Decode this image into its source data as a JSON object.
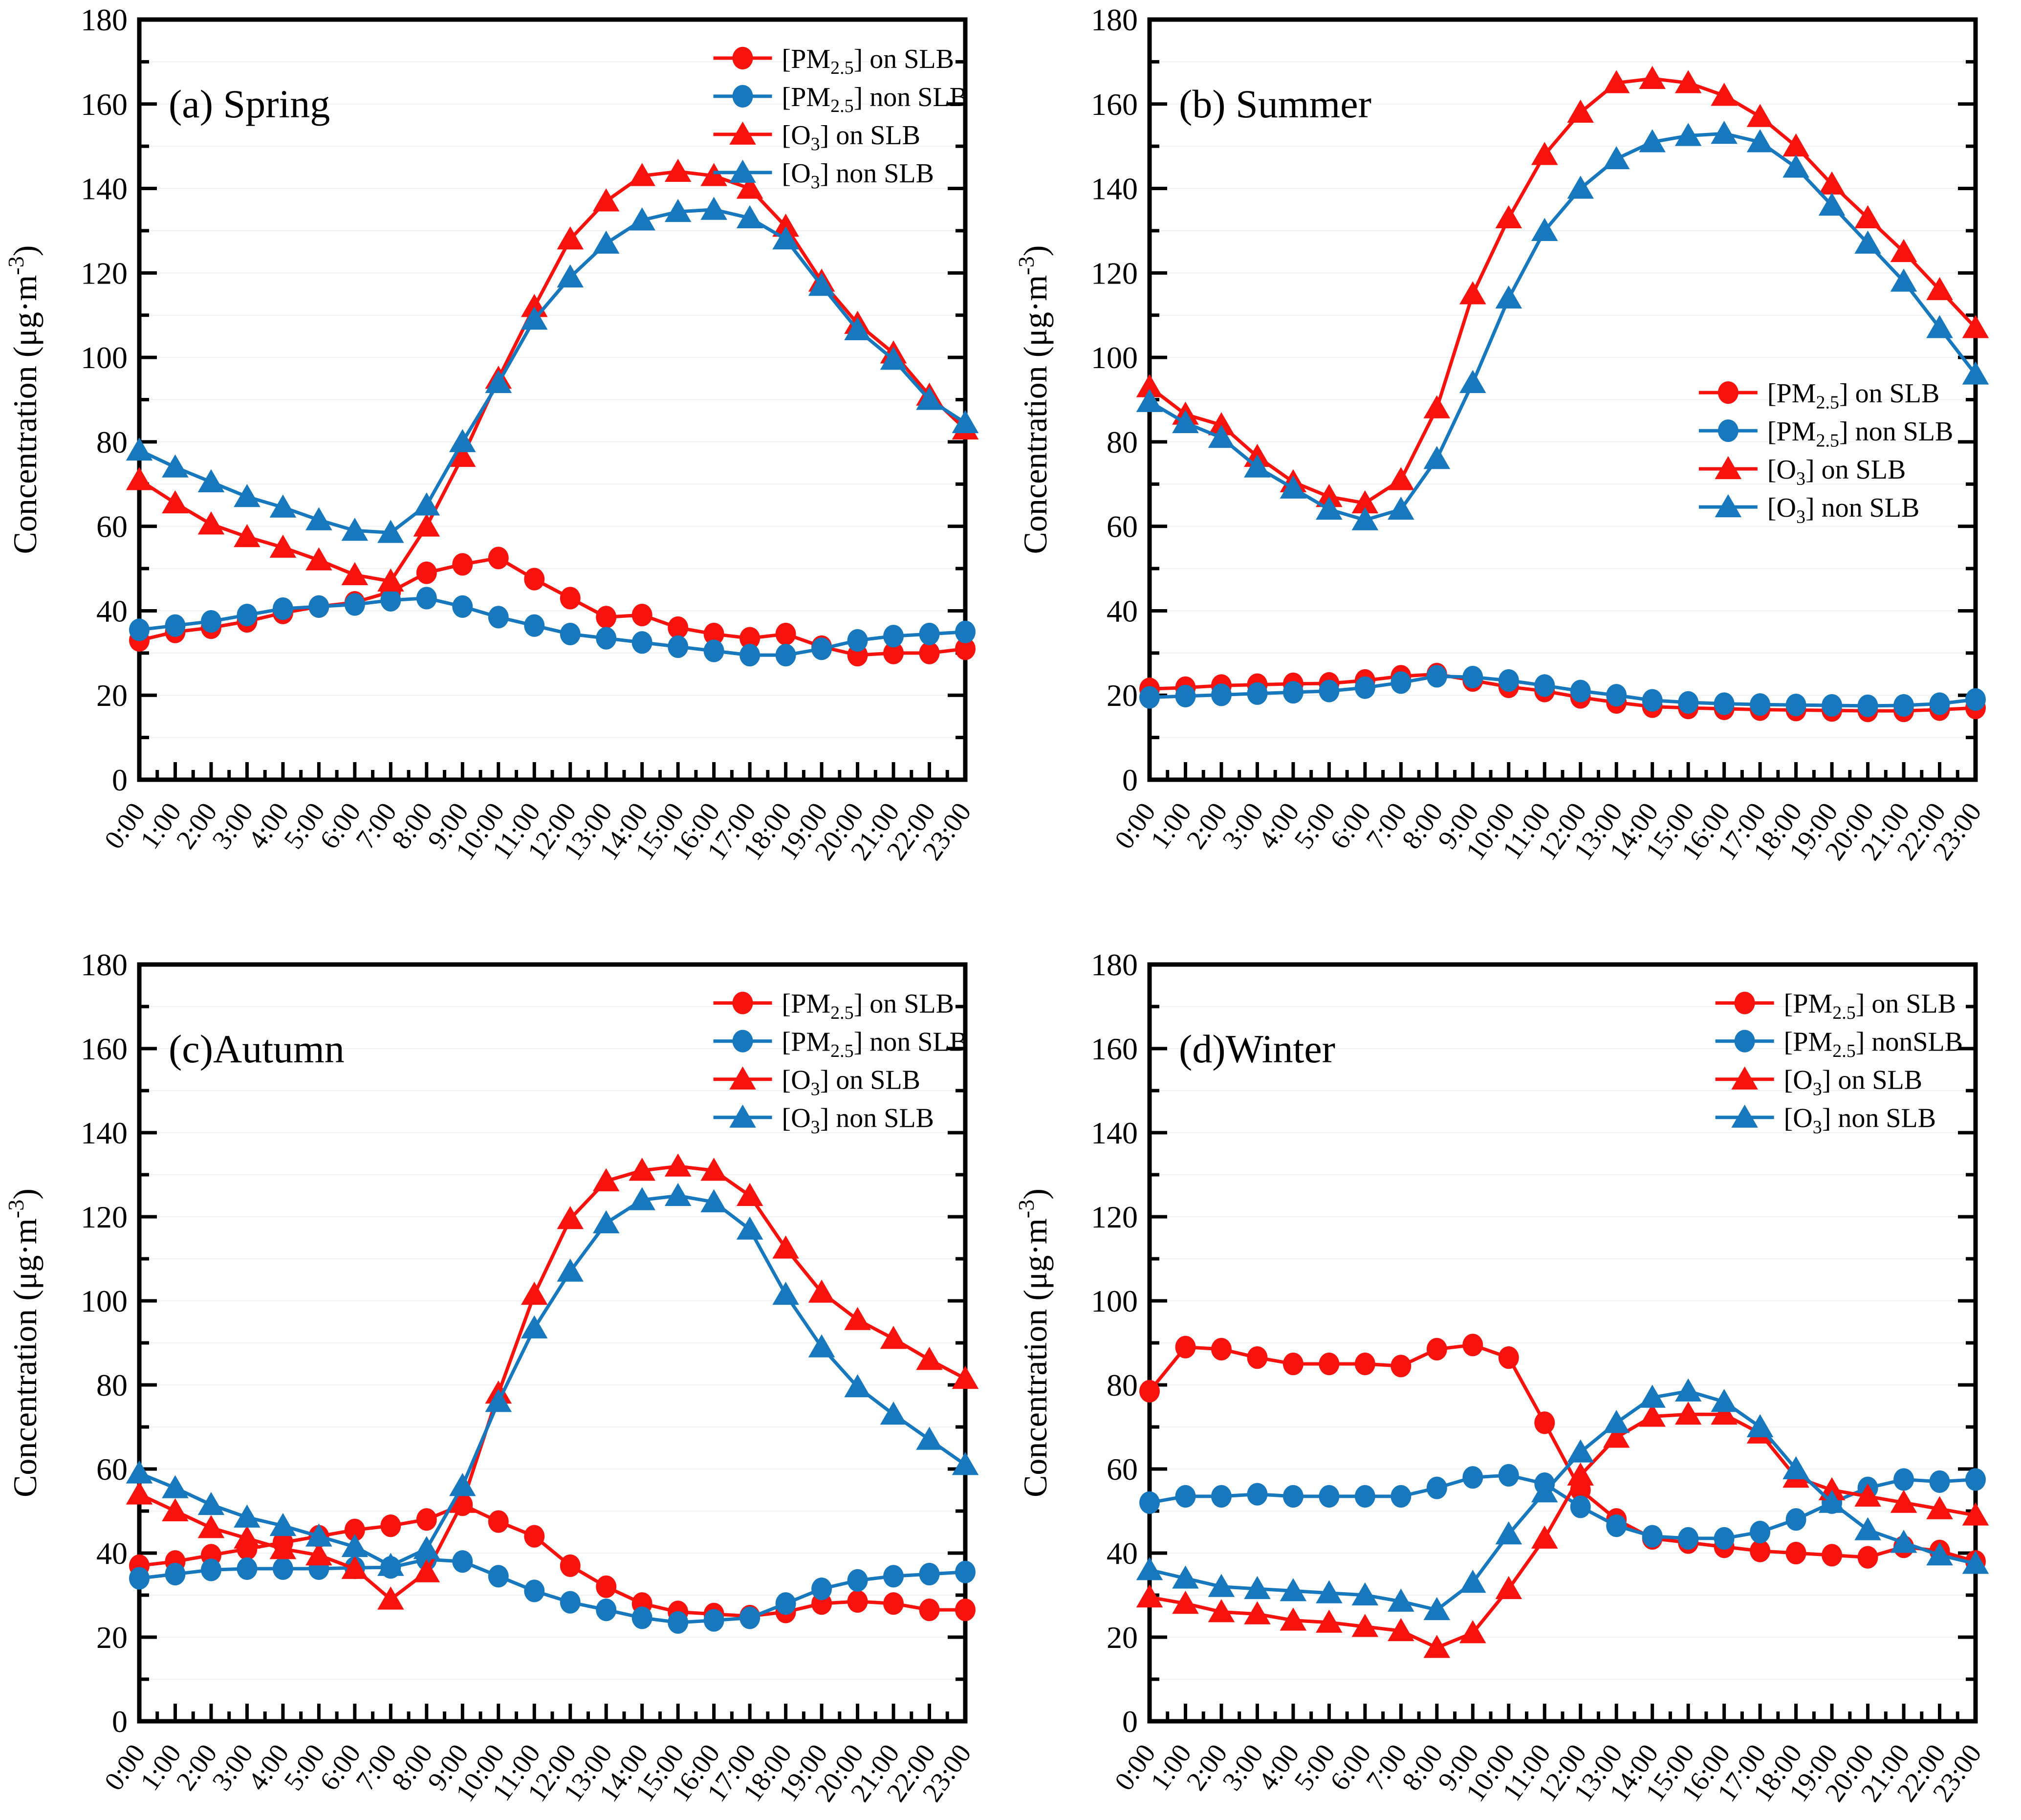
{
  "figure": {
    "background": "#ffffff",
    "accent_red": "#f8120d",
    "accent_blue": "#1878be",
    "frame_color": "#000000",
    "grid_color": "#f0f0f0"
  },
  "axis": {
    "ylabel": "Concentration (μg·m^{-3})",
    "ymin": 0,
    "ymax": 180,
    "ytick_major": 20,
    "ytick_minor": 10,
    "ytick_labels": [
      "0",
      "20",
      "40",
      "60",
      "80",
      "100",
      "120",
      "140",
      "160",
      "180"
    ]
  },
  "hours": [
    "0:00",
    "1:00",
    "2:00",
    "3:00",
    "4:00",
    "5:00",
    "6:00",
    "7:00",
    "8:00",
    "9:00",
    "10:00",
    "11:00",
    "12:00",
    "13:00",
    "14:00",
    "15:00",
    "16:00",
    "17:00",
    "18:00",
    "19:00",
    "20:00",
    "21:00",
    "22:00",
    "23:00"
  ],
  "series_meta": [
    {
      "key": "pm25_on",
      "label": "[PM_{2.5}] on SLB",
      "color": "#f8120d",
      "marker": "circle"
    },
    {
      "key": "pm25_non",
      "label": "[PM_{2.5}] non SLB",
      "color": "#1878be",
      "marker": "circle"
    },
    {
      "key": "o3_on",
      "label": "[O_{3}] on SLB",
      "color": "#f8120d",
      "marker": "triangle"
    },
    {
      "key": "o3_non",
      "label": "[O_{3}] non SLB",
      "color": "#1878be",
      "marker": "triangle"
    }
  ],
  "chart_data": [
    {
      "type": "line",
      "panel": "a",
      "title": "(a) Spring",
      "xlabel": "",
      "ylabel": "Concentration (μg·m^{-3})",
      "ylim": [
        0,
        180
      ],
      "grid": true,
      "legend_position": "top-right",
      "legend_frac": [
        0.695,
        0.025
      ],
      "legend_labels": [
        "[PM_{2.5}] on SLB",
        "[PM_{2.5}] non SLB",
        "[O_{3}] on SLB",
        "[O_{3}] non SLB"
      ],
      "series": [
        {
          "name": "[PM2.5] on SLB",
          "values": [
            33,
            35,
            36,
            37.5,
            39.5,
            41,
            42,
            44.5,
            49,
            51,
            52.5,
            47.5,
            43,
            38.5,
            39,
            36,
            34.5,
            33.5,
            34.5,
            31.5,
            29.5,
            30,
            30,
            31
          ]
        },
        {
          "name": "[PM2.5] non SLB",
          "values": [
            35.5,
            36.5,
            37.5,
            39,
            40.5,
            41,
            41.5,
            42.5,
            43,
            41,
            38.5,
            36.5,
            34.5,
            33.5,
            32.5,
            31.5,
            30.5,
            29.5,
            29.5,
            31,
            33,
            34,
            34.5,
            35
          ]
        },
        {
          "name": "[O3] on SLB",
          "values": [
            71,
            65.5,
            60.5,
            57.5,
            55,
            52,
            48.5,
            47,
            60,
            76.5,
            95,
            112,
            128,
            137,
            143,
            144,
            143,
            140,
            131,
            118,
            108,
            101,
            91,
            83
          ]
        },
        {
          "name": "[O3] non SLB",
          "values": [
            78,
            74,
            70.5,
            67,
            64.5,
            61.5,
            59,
            58.5,
            65,
            80,
            94,
            109,
            119,
            127,
            132.5,
            134.5,
            135,
            133,
            128,
            117,
            106.5,
            99.5,
            90,
            84.5
          ]
        }
      ]
    },
    {
      "type": "line",
      "panel": "b",
      "title": "(b) Summer",
      "xlabel": "",
      "ylabel": "Concentration (μg·m^{-3})",
      "ylim": [
        0,
        180
      ],
      "grid": true,
      "legend_position": "middle-right",
      "legend_frac": [
        0.665,
        0.465
      ],
      "legend_labels": [
        "[PM_{2.5}] on SLB",
        "[PM_{2.5}] non SLB",
        "[O_{3}] on SLB",
        "[O_{3}] non SLB"
      ],
      "series": [
        {
          "name": "[PM2.5] on SLB",
          "values": [
            21.5,
            21.8,
            22.3,
            22.5,
            22.7,
            22.8,
            23.5,
            24.5,
            25,
            23.5,
            22,
            21,
            19.5,
            18.3,
            17.3,
            17,
            16.8,
            16.6,
            16.5,
            16.4,
            16.3,
            16.3,
            16.6,
            17
          ]
        },
        {
          "name": "[PM2.5] non SLB",
          "values": [
            19.5,
            19.8,
            20.1,
            20.4,
            20.7,
            21,
            21.8,
            23,
            24.5,
            24.3,
            23.5,
            22.3,
            21,
            20,
            18.8,
            18.3,
            18,
            17.8,
            17.7,
            17.6,
            17.5,
            17.6,
            18,
            19
          ]
        },
        {
          "name": "[O3] on SLB",
          "values": [
            93,
            86.5,
            84,
            76.5,
            70.5,
            67,
            65.5,
            71,
            88,
            115,
            133,
            148,
            158,
            165,
            166,
            165,
            162,
            157,
            150,
            141,
            133,
            125,
            116,
            107
          ]
        },
        {
          "name": "[O3] non SLB",
          "values": [
            89.5,
            84.5,
            81,
            74,
            69,
            64,
            61.5,
            64,
            76,
            94,
            114,
            130,
            140,
            147,
            151,
            152.5,
            153,
            151,
            145,
            136,
            127,
            118,
            107,
            96
          ]
        }
      ]
    },
    {
      "type": "line",
      "panel": "c",
      "title": "(c)Autumn",
      "xlabel": "",
      "ylabel": "Concentration (μg·m^{-3})",
      "ylim": [
        0,
        180
      ],
      "grid": true,
      "legend_position": "top-right",
      "legend_frac": [
        0.695,
        0.025
      ],
      "legend_labels": [
        "[PM_{2.5}] on SLB",
        "[PM_{2.5}] non SLB",
        "[O_{3}] on SLB",
        "[O_{3}] non SLB"
      ],
      "series": [
        {
          "name": "[PM2.5] on SLB",
          "values": [
            37,
            38,
            39.5,
            41,
            42.5,
            44,
            45.5,
            46.5,
            48,
            51.5,
            47.5,
            44,
            37,
            32,
            28,
            26,
            25.5,
            25,
            26,
            28,
            28.5,
            28,
            26.5,
            26.5
          ]
        },
        {
          "name": "[PM2.5] non SLB",
          "values": [
            34,
            35,
            36,
            36.3,
            36.3,
            36.3,
            36.5,
            36.6,
            38.5,
            38,
            34.5,
            31,
            28.3,
            26.5,
            24.6,
            23.5,
            24,
            24.6,
            28,
            31.5,
            33.5,
            34.5,
            35,
            35.5
          ]
        },
        {
          "name": "[O3] on SLB",
          "values": [
            54,
            50,
            46,
            43.5,
            41,
            39.5,
            36.3,
            29,
            35.5,
            52,
            78,
            101.5,
            119.5,
            128.5,
            131,
            132,
            131,
            125,
            112.5,
            102,
            95.5,
            91,
            86,
            81.5
          ]
        },
        {
          "name": "[O3] non SLB",
          "values": [
            59,
            55.5,
            51.5,
            48.5,
            46.5,
            44,
            41.5,
            37,
            41,
            56,
            76,
            93.5,
            107,
            118.5,
            124,
            125,
            123.5,
            117,
            101.5,
            89,
            79.5,
            73,
            67,
            61
          ]
        }
      ]
    },
    {
      "type": "line",
      "panel": "d",
      "title": "(d)Winter",
      "xlabel": "",
      "ylabel": "Concentration (μg·m^{-3})",
      "ylim": [
        0,
        180
      ],
      "grid": true,
      "legend_position": "top-right",
      "legend_frac": [
        0.685,
        0.025
      ],
      "legend_labels": [
        "[PM_{2.5}] on SLB",
        "[PM_{2.5}] nonSLB",
        "[O_{3}] on SLB",
        "[O_{3}] non SLB"
      ],
      "series": [
        {
          "name": "[PM2.5] on SLB",
          "values": [
            78.5,
            89,
            88.5,
            86.5,
            85,
            85,
            85,
            84.5,
            88.5,
            89.5,
            86.5,
            71,
            55,
            48,
            43.5,
            42.5,
            41.5,
            40.5,
            40,
            39.5,
            39,
            41.5,
            40.5,
            38
          ]
        },
        {
          "name": "[PM2.5] non SLB",
          "values": [
            52,
            53.5,
            53.5,
            54,
            53.5,
            53.5,
            53.5,
            53.5,
            55.5,
            58,
            58.5,
            56.5,
            51,
            46.5,
            44,
            43.5,
            43.5,
            45,
            48,
            52,
            55.5,
            57.5,
            57,
            57.5
          ]
        },
        {
          "name": "[O3] on SLB",
          "values": [
            29.5,
            28,
            26,
            25.5,
            24,
            23.5,
            22.5,
            21.5,
            17.5,
            21,
            31.5,
            43.5,
            58.5,
            67.5,
            72.5,
            73,
            73,
            68.5,
            58,
            55,
            53.5,
            52,
            50.5,
            49
          ]
        },
        {
          "name": "[O3] non SLB",
          "values": [
            36,
            34,
            32,
            31.5,
            31,
            30.5,
            30,
            28.5,
            26.5,
            33,
            44.5,
            54.5,
            64,
            71,
            77,
            78.5,
            76,
            70,
            60,
            52,
            45.5,
            42.5,
            39.5,
            37.5
          ]
        }
      ]
    }
  ]
}
